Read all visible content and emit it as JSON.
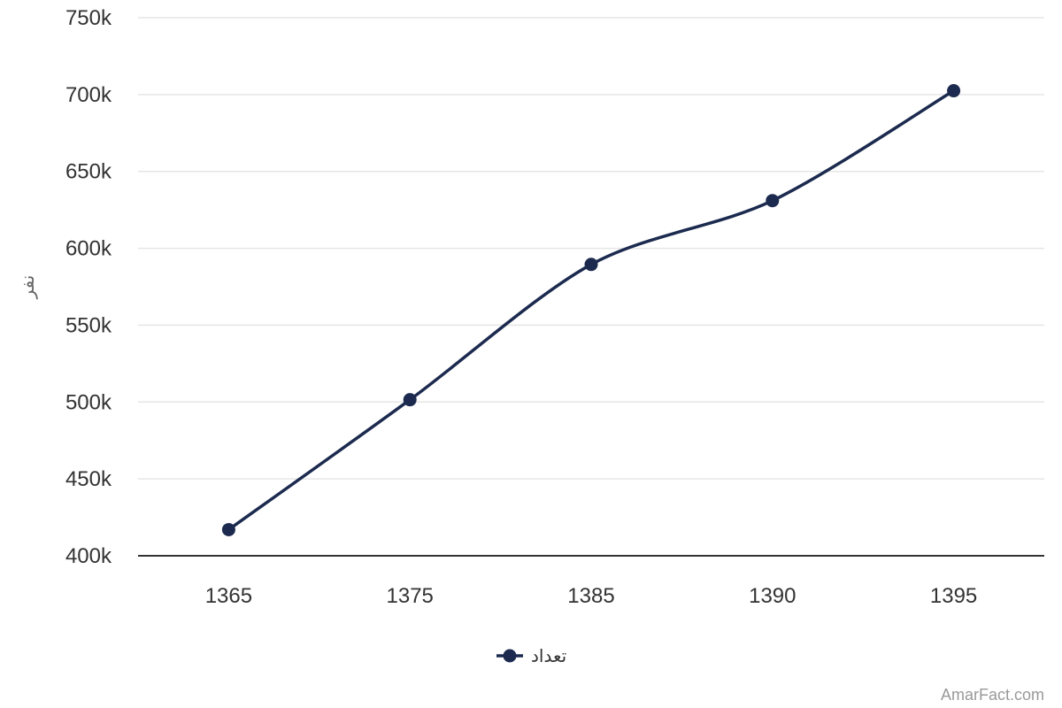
{
  "chart_data": {
    "type": "line",
    "title": "",
    "xlabel": "",
    "ylabel": "نفر",
    "categories": [
      "1365",
      "1375",
      "1385",
      "1390",
      "1395"
    ],
    "series": [
      {
        "name": "تعداد",
        "values": [
          417000,
          501500,
          589500,
          631000,
          702500
        ],
        "color": "#1b2a4e"
      }
    ],
    "ylim": [
      400000,
      750000
    ],
    "yticks": [
      400000,
      450000,
      500000,
      550000,
      600000,
      650000,
      700000,
      750000
    ],
    "ytick_labels": [
      "400k",
      "450k",
      "500k",
      "550k",
      "600k",
      "650k",
      "700k",
      "750k"
    ],
    "grid": true,
    "legend_position": "bottom-center",
    "colors": {
      "series": "#1b2a4e",
      "grid": "#e6e6e6",
      "axis": "#333333",
      "text": "#333333",
      "credit": "#999999"
    }
  },
  "credit": "AmarFact.com"
}
